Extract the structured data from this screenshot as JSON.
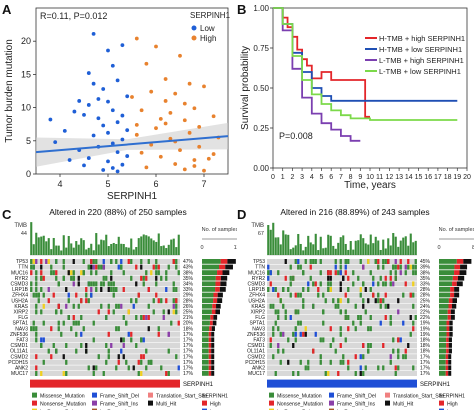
{
  "panels": {
    "A": "A",
    "B": "B",
    "C": "C",
    "D": "D"
  },
  "chart_data": [
    {
      "type": "scatter",
      "panel": "A",
      "annotation": "R=0.11, P=0.012",
      "xlabel": "SERPINH1",
      "ylabel": "Tumor burden mutation",
      "xlim": [
        3.5,
        7.5
      ],
      "ylim": [
        0,
        25
      ],
      "xticks": [
        4,
        5,
        6,
        7
      ],
      "yticks": [
        0,
        5,
        10,
        15,
        20
      ],
      "legend": {
        "title": "SERPINH1",
        "position": "top-right",
        "entries": [
          {
            "label": "Low",
            "color": "#1f5fd6"
          },
          {
            "label": "High",
            "color": "#e8822e"
          }
        ]
      },
      "split_x": 5.45,
      "fit": {
        "intercept": 1.2,
        "slope": 0.6
      },
      "points_low": [
        [
          3.8,
          8.2
        ],
        [
          4.1,
          6.5
        ],
        [
          4.3,
          9.4
        ],
        [
          4.5,
          8.9
        ],
        [
          4.6,
          15.2
        ],
        [
          4.7,
          21.1
        ],
        [
          4.8,
          11.3
        ],
        [
          4.9,
          12.8
        ],
        [
          5.0,
          18.6
        ],
        [
          5.1,
          9.6
        ],
        [
          5.2,
          14.1
        ],
        [
          5.3,
          19.4
        ],
        [
          4.4,
          3.6
        ],
        [
          4.6,
          2.4
        ],
        [
          4.8,
          4.1
        ],
        [
          5.0,
          1.9
        ],
        [
          5.2,
          3.3
        ],
        [
          5.3,
          5.2
        ],
        [
          5.4,
          6.6
        ],
        [
          4.9,
          7.3
        ],
        [
          5.1,
          4.6
        ],
        [
          4.7,
          5.8
        ],
        [
          5.0,
          6.2
        ],
        [
          5.2,
          7.8
        ],
        [
          5.4,
          2.7
        ],
        [
          4.5,
          1.3
        ],
        [
          4.9,
          0.6
        ],
        [
          5.1,
          0.9
        ],
        [
          5.3,
          1.4
        ],
        [
          4.2,
          2.1
        ],
        [
          3.9,
          4.8
        ],
        [
          4.6,
          10.4
        ],
        [
          5.0,
          10.9
        ],
        [
          5.4,
          11.7
        ],
        [
          5.2,
          0.4
        ],
        [
          4.8,
          8.4
        ],
        [
          4.7,
          13.6
        ],
        [
          5.1,
          16.3
        ],
        [
          4.4,
          11.0
        ],
        [
          5.3,
          8.8
        ]
      ],
      "points_high": [
        [
          5.6,
          20.4
        ],
        [
          5.8,
          16.6
        ],
        [
          6.0,
          19.2
        ],
        [
          6.2,
          14.3
        ],
        [
          6.4,
          12.1
        ],
        [
          6.6,
          10.6
        ],
        [
          6.8,
          9.9
        ],
        [
          7.0,
          13.2
        ],
        [
          7.2,
          8.7
        ],
        [
          6.5,
          17.8
        ],
        [
          5.7,
          3.2
        ],
        [
          5.9,
          4.4
        ],
        [
          6.1,
          2.6
        ],
        [
          6.3,
          5.3
        ],
        [
          6.5,
          3.6
        ],
        [
          6.7,
          6.2
        ],
        [
          6.9,
          4.1
        ],
        [
          7.1,
          2.3
        ],
        [
          7.3,
          5.5
        ],
        [
          6.0,
          6.9
        ],
        [
          6.2,
          7.6
        ],
        [
          6.4,
          1.5
        ],
        [
          6.6,
          0.7
        ],
        [
          6.8,
          1.2
        ],
        [
          5.8,
          1.0
        ],
        [
          6.1,
          8.3
        ],
        [
          6.3,
          9.2
        ],
        [
          5.6,
          7.4
        ],
        [
          6.9,
          7.1
        ],
        [
          7.0,
          0.5
        ],
        [
          5.5,
          11.6
        ],
        [
          6.7,
          13.6
        ],
        [
          6.2,
          11.0
        ],
        [
          5.9,
          12.4
        ],
        [
          6.6,
          8.1
        ],
        [
          7.2,
          3.0
        ],
        [
          5.7,
          9.6
        ],
        [
          6.4,
          4.9
        ],
        [
          6.8,
          2.1
        ],
        [
          5.6,
          5.9
        ]
      ]
    },
    {
      "type": "line",
      "panel": "B",
      "ylabel": "Survival probability",
      "xlabel": "Time, years",
      "annotation": "P=0.008",
      "xlim": [
        0,
        20
      ],
      "ylim": [
        0,
        1
      ],
      "xticks": [
        0,
        1,
        2,
        3,
        4,
        5,
        6,
        7,
        8,
        9,
        10,
        11,
        12,
        13,
        14,
        15,
        16,
        17,
        18,
        19,
        20
      ],
      "yticks": [
        0,
        0.25,
        0.5,
        0.75,
        1.0
      ],
      "ytick_labels": [
        "0.00",
        "0.25",
        "0.50",
        "0.75",
        "1.00"
      ],
      "legend_position": "top-right",
      "series": [
        {
          "name": "H-TMB + high SERPINH1",
          "color": "#e3262a",
          "x": [
            0,
            1,
            1.5,
            2,
            2.5,
            3,
            3.5,
            4,
            5,
            6,
            7,
            8,
            9,
            9.5,
            10
          ],
          "y": [
            1,
            0.94,
            0.88,
            0.82,
            0.74,
            0.68,
            0.64,
            0.56,
            0.6,
            0.55,
            0.55,
            0.55,
            0.55,
            0.32,
            0.32
          ]
        },
        {
          "name": "H-TMB + low SERPINH1",
          "color": "#1f4fb4",
          "x": [
            0,
            1,
            2,
            3,
            4,
            5,
            6,
            8,
            10,
            12,
            15,
            19
          ],
          "y": [
            1,
            0.9,
            0.72,
            0.6,
            0.5,
            0.45,
            0.42,
            0.42,
            0.42,
            0.42,
            0.42,
            0.42
          ]
        },
        {
          "name": "L-TMB + high SERPINH1",
          "color": "#7b3fb0",
          "x": [
            0,
            1,
            2,
            3,
            4,
            5,
            6,
            7,
            8,
            9
          ],
          "y": [
            1,
            0.86,
            0.62,
            0.44,
            0.34,
            0.28,
            0.24,
            0.2,
            0.17,
            0.17
          ]
        },
        {
          "name": "L-TMB + low SERPINH1",
          "color": "#7cd94a",
          "x": [
            0,
            1,
            2,
            3,
            4,
            5,
            6,
            7,
            8,
            10,
            12,
            15,
            19
          ],
          "y": [
            1,
            0.9,
            0.7,
            0.55,
            0.46,
            0.4,
            0.36,
            0.33,
            0.31,
            0.3,
            0.3,
            0.3,
            0.3
          ]
        }
      ]
    },
    {
      "type": "heatmap",
      "panel": "C",
      "title": "Altered in 220 (88%) of 250 samples",
      "top_label": "TMB",
      "top_scale": "44",
      "side_label": "No. of samples",
      "side_scale": [
        "0",
        "117"
      ],
      "annotation_bar": {
        "label": "SERPINH1",
        "color": "#e3262a"
      },
      "genes": [
        "TP53",
        "TTN",
        "MUC16",
        "RYR2",
        "CSMD3",
        "LRP1B",
        "ZFHX4",
        "USH2A",
        "KRAS",
        "XIRP2",
        "FLG",
        "SPTA1",
        "NAV3",
        "ZNF536",
        "FAT3",
        "CSMD1",
        "OL11A1",
        "CSMD2",
        "PCDH15",
        "ANK2",
        "MUC17"
      ],
      "percents": [
        "47%",
        "43%",
        "38%",
        "35%",
        "34%",
        "33%",
        "29%",
        "28%",
        "26%",
        "25%",
        "21%",
        "20%",
        "18%",
        "17%",
        "17%",
        "17%",
        "17%",
        "17%",
        "17%",
        "17%",
        "17%"
      ]
    },
    {
      "type": "heatmap",
      "panel": "D",
      "title": "Altered in 216 (88.89%) of 243 samples",
      "top_label": "TMB",
      "top_scale": "67",
      "side_label": "No. of samples",
      "side_scale": [
        "0",
        "87"
      ],
      "annotation_bar": {
        "label": "SERPINH1",
        "color": "#1f4fd6"
      },
      "genes": [
        "TP53",
        "TTN",
        "MUC16",
        "RYR2",
        "CSMD3",
        "LRP1B",
        "ZFHX4",
        "USH2A",
        "KRAS",
        "XIRP2",
        "FLG",
        "SPTA1",
        "NAV3",
        "ZNF536",
        "FAT3",
        "CSMD1",
        "OL11A1",
        "CSMD2",
        "PCDH15",
        "ANK2",
        "MUC17"
      ],
      "percents": [
        "45%",
        "39%",
        "38%",
        "35%",
        "33%",
        "28%",
        "28%",
        "25%",
        "24%",
        "22%",
        "22%",
        "19%",
        "19%",
        "19%",
        "18%",
        "18%",
        "18%",
        "17%",
        "17%",
        "17%",
        "17%"
      ]
    }
  ],
  "mutation_legend": {
    "items": [
      {
        "label": "Missense_Mutation",
        "color": "#3a8d3a"
      },
      {
        "label": "Nonsense_Mutation",
        "color": "#e3262a"
      },
      {
        "label": "Frame_Shift_Del",
        "color": "#1f4fd6"
      },
      {
        "label": "In_Frame_Del",
        "color": "#f0d020"
      },
      {
        "label": "Frame_Shift_Ins",
        "color": "#8b3fa8"
      },
      {
        "label": "Translation_Start_Site",
        "color": "#f08080"
      },
      {
        "label": "Multi_Hit",
        "color": "#111111"
      },
      {
        "label": "In_Frame_Ins",
        "color": "#a65628"
      }
    ],
    "serp_title": "SERPINH1",
    "high": {
      "label": "High",
      "color": "#e3262a"
    },
    "low": {
      "label": "Low",
      "color": "#1f4fd6"
    }
  }
}
